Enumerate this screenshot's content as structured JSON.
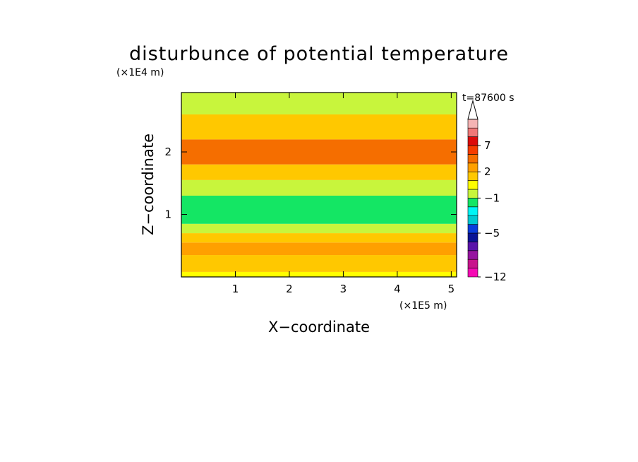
{
  "chart_data": {
    "type": "heatmap",
    "title": "disturbunce of potential temperature",
    "xlabel": "X−coordinate",
    "ylabel": "Z−coordinate",
    "x_unit": "(×1E5 m)",
    "y_unit": "(×1E4 m)",
    "time_label": "t=87600 s",
    "xlim": [
      0,
      5.1
    ],
    "ylim": [
      0,
      2.95
    ],
    "x_ticks": [
      {
        "value": 1,
        "label": "1"
      },
      {
        "value": 2,
        "label": "2"
      },
      {
        "value": 3,
        "label": "3"
      },
      {
        "value": 4,
        "label": "4"
      },
      {
        "value": 5,
        "label": "5"
      }
    ],
    "y_ticks": [
      {
        "value": 1,
        "label": "1"
      },
      {
        "value": 2,
        "label": "2"
      }
    ],
    "colorbar": {
      "levels": [
        {
          "color": "#f50ab4"
        },
        {
          "color": "#c8148c"
        },
        {
          "color": "#9614a0"
        },
        {
          "color": "#5a14aa"
        },
        {
          "color": "#0a1496"
        },
        {
          "color": "#0a3cdc"
        },
        {
          "color": "#00c8d2"
        },
        {
          "color": "#00f5f5"
        },
        {
          "color": "#14e664"
        },
        {
          "color": "#c8f53c"
        },
        {
          "color": "#ffff00"
        },
        {
          "color": "#ffc800"
        },
        {
          "color": "#ffa000"
        },
        {
          "color": "#f56e00"
        },
        {
          "color": "#f53c00"
        },
        {
          "color": "#dc0a0a"
        },
        {
          "color": "#f07878"
        },
        {
          "color": "#f5b4b4"
        }
      ],
      "labels": [
        {
          "value": "7",
          "level": 15
        },
        {
          "value": "2",
          "level": 12
        },
        {
          "value": "−1",
          "level": 9
        },
        {
          "value": "−5",
          "level": 5
        },
        {
          "value": "−12",
          "level": 0
        }
      ],
      "extend_arrow": "top"
    },
    "field_regions": [
      {
        "z": [
          0.0,
          0.08
        ],
        "value": 1
      },
      {
        "z": [
          0.08,
          0.35
        ],
        "value": 2
      },
      {
        "z": [
          0.35,
          0.55
        ],
        "value": 3
      },
      {
        "z": [
          0.55,
          0.7
        ],
        "value": 2
      },
      {
        "z": [
          0.7,
          0.85
        ],
        "value": 0
      },
      {
        "z": [
          0.85,
          1.3
        ],
        "value": -1
      },
      {
        "z": [
          1.3,
          1.55
        ],
        "value": 0
      },
      {
        "z": [
          1.55,
          1.8
        ],
        "value": 2
      },
      {
        "z": [
          1.8,
          2.2
        ],
        "value": 4
      },
      {
        "z": [
          2.2,
          2.6
        ],
        "value": 2
      },
      {
        "z": [
          2.6,
          2.95
        ],
        "value": 0
      }
    ]
  }
}
